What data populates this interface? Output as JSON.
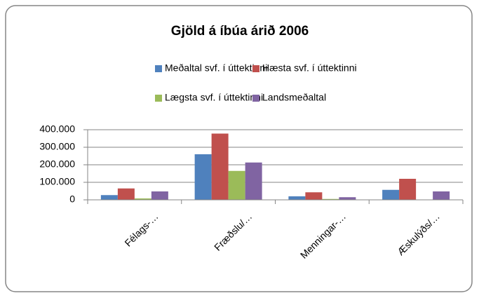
{
  "chart_data": {
    "type": "bar",
    "title": "Gjöld á íbúa árið 2006",
    "categories": [
      "Félags-…",
      "Fræðslu/…",
      "Menningar-…",
      "Æskulýðs/…"
    ],
    "series": [
      {
        "name": "Meðaltal svf. í úttektinni",
        "color": "#4f81bd",
        "values": [
          27000,
          260000,
          20000,
          57000
        ]
      },
      {
        "name": "Hæsta svf. í úttektinni",
        "color": "#c0504d",
        "values": [
          65000,
          378000,
          43000,
          120000
        ]
      },
      {
        "name": "Lægsta svf. í úttektinni",
        "color": "#9bbb59",
        "values": [
          8000,
          165000,
          5000,
          0
        ]
      },
      {
        "name": "Landsmeðaltal",
        "color": "#8064a2",
        "values": [
          48000,
          213000,
          15000,
          48000
        ]
      }
    ],
    "ylim": [
      0,
      400000
    ],
    "yticks": [
      0,
      {
        "value": 100000,
        "label": "100.000"
      },
      {
        "value": 200000,
        "label": "200.000"
      },
      {
        "value": 300000,
        "label": "300.000"
      },
      {
        "value": 400000,
        "label": "400.000"
      }
    ],
    "grid": true
  }
}
